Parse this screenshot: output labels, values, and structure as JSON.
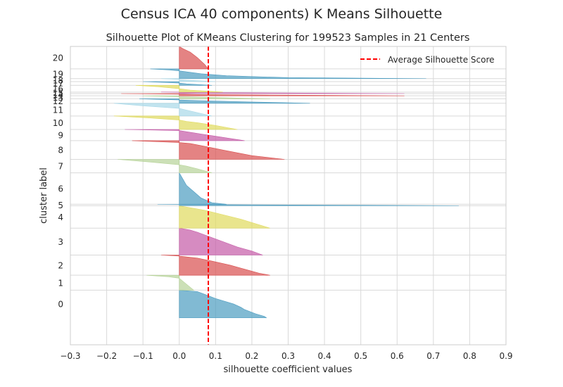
{
  "figure": {
    "suptitle": "Census ICA 40 components) K Means Silhouette"
  },
  "chart_data": {
    "type": "area",
    "title": "Silhouette Plot of KMeans Clustering for 199523 Samples in 21 Centers",
    "xlabel": "silhouette coefficient values",
    "ylabel": "cluster label",
    "xlim": [
      -0.3,
      0.9
    ],
    "xticks": [
      "−0.3",
      "−0.2",
      "−0.1",
      "0.0",
      "0.1",
      "0.2",
      "0.3",
      "0.4",
      "0.5",
      "0.6",
      "0.7",
      "0.8",
      "0.9"
    ],
    "xtick_values": [
      -0.3,
      -0.2,
      -0.1,
      0.0,
      0.1,
      0.2,
      0.3,
      0.4,
      0.5,
      0.6,
      0.7,
      0.8,
      0.9
    ],
    "ylim": [
      0,
      199523
    ],
    "grid": true,
    "legend": {
      "position": "top-right",
      "entries": [
        "Average Silhouette Score"
      ]
    },
    "average_silhouette_score": 0.08,
    "average_line_color": "#ff0000",
    "colors": [
      "#4c9cc0",
      "#b6d398",
      "#d94e4e",
      "#c45aa7",
      "#e0da5c"
    ],
    "clusters": [
      {
        "label": "0",
        "y0": 18000,
        "y1": 36500,
        "color": "#4c9cc0",
        "profile": [
          [
            0,
            0.24
          ],
          [
            0.05,
            0.235
          ],
          [
            0.15,
            0.21
          ],
          [
            0.3,
            0.18
          ],
          [
            0.38,
            0.17
          ],
          [
            0.5,
            0.15
          ],
          [
            0.7,
            0.1
          ],
          [
            0.85,
            0.07
          ],
          [
            0.95,
            0.05
          ],
          [
            1,
            0.0
          ]
        ]
      },
      {
        "label": "1",
        "y0": 36500,
        "y1": 46500,
        "color": "#b6d398",
        "profile": [
          [
            0,
            0.04
          ],
          [
            0.2,
            0.03
          ],
          [
            0.4,
            0.02
          ],
          [
            0.6,
            0.01
          ],
          [
            0.8,
            0.0
          ],
          [
            0.9,
            -0.03
          ],
          [
            1,
            -0.09
          ]
        ]
      },
      {
        "label": "2",
        "y0": 46500,
        "y1": 60000,
        "color": "#d94e4e",
        "profile": [
          [
            0,
            0.25
          ],
          [
            0.1,
            0.22
          ],
          [
            0.3,
            0.18
          ],
          [
            0.5,
            0.14
          ],
          [
            0.7,
            0.09
          ],
          [
            0.85,
            0.05
          ],
          [
            0.95,
            0.0
          ],
          [
            1,
            -0.05
          ]
        ]
      },
      {
        "label": "3",
        "y0": 60000,
        "y1": 78000,
        "color": "#c45aa7",
        "profile": [
          [
            0,
            0.23
          ],
          [
            0.15,
            0.2
          ],
          [
            0.3,
            0.16
          ],
          [
            0.5,
            0.12
          ],
          [
            0.7,
            0.08
          ],
          [
            0.85,
            0.05
          ],
          [
            0.93,
            0.03
          ],
          [
            1,
            0.0
          ]
        ]
      },
      {
        "label": "4",
        "y0": 78000,
        "y1": 93000,
        "color": "#e0da5c",
        "profile": [
          [
            0,
            0.25
          ],
          [
            0.2,
            0.21
          ],
          [
            0.4,
            0.17
          ],
          [
            0.6,
            0.12
          ],
          [
            0.8,
            0.07
          ],
          [
            1,
            0.0
          ]
        ]
      },
      {
        "label": "5",
        "y0": 93000,
        "y1": 94000,
        "color": "#4c9cc0",
        "profile": [
          [
            0,
            0.77
          ],
          [
            0.3,
            0.5
          ],
          [
            0.6,
            0.2
          ],
          [
            1,
            -0.06
          ]
        ]
      },
      {
        "label": "6",
        "y0": 94000,
        "y1": 115000,
        "color": "#4c9cc0",
        "profile": [
          [
            0,
            0.13
          ],
          [
            0.05,
            0.09
          ],
          [
            0.2,
            0.06
          ],
          [
            0.4,
            0.04
          ],
          [
            0.6,
            0.02
          ],
          [
            0.8,
            0.01
          ],
          [
            1,
            0.0
          ]
        ]
      },
      {
        "label": "7",
        "y0": 115000,
        "y1": 124000,
        "color": "#b6d398",
        "profile": [
          [
            0,
            0.09
          ],
          [
            0.3,
            0.05
          ],
          [
            0.5,
            0.02
          ],
          [
            0.6,
            0.0
          ],
          [
            0.8,
            -0.08
          ],
          [
            1,
            -0.17
          ]
        ]
      },
      {
        "label": "8",
        "y0": 124000,
        "y1": 136500,
        "color": "#d94e4e",
        "profile": [
          [
            0,
            0.29
          ],
          [
            0.2,
            0.2
          ],
          [
            0.5,
            0.12
          ],
          [
            0.7,
            0.07
          ],
          [
            0.85,
            0.03
          ],
          [
            0.9,
            0.0
          ],
          [
            1,
            -0.13
          ]
        ]
      },
      {
        "label": "9",
        "y0": 136500,
        "y1": 144000,
        "color": "#c45aa7",
        "profile": [
          [
            0,
            0.18
          ],
          [
            0.3,
            0.12
          ],
          [
            0.6,
            0.06
          ],
          [
            0.8,
            0.02
          ],
          [
            0.9,
            0.0
          ],
          [
            1,
            -0.15
          ]
        ]
      },
      {
        "label": "10",
        "y0": 144000,
        "y1": 153000,
        "color": "#e0da5c",
        "profile": [
          [
            0,
            0.16
          ],
          [
            0.3,
            0.1
          ],
          [
            0.5,
            0.05
          ],
          [
            0.6,
            0.02
          ],
          [
            0.7,
            0.0
          ],
          [
            0.85,
            -0.08
          ],
          [
            1,
            -0.18
          ]
        ]
      },
      {
        "label": "11",
        "y0": 153000,
        "y1": 161500,
        "color": "#a8d8e8",
        "profile": [
          [
            0,
            0.09
          ],
          [
            0.4,
            0.03
          ],
          [
            0.6,
            0.0
          ],
          [
            0.8,
            -0.1
          ],
          [
            1,
            -0.18
          ]
        ]
      },
      {
        "label": "12",
        "y0": 161500,
        "y1": 164500,
        "color": "#4c9cc0",
        "profile": [
          [
            0,
            0.36
          ],
          [
            0.3,
            0.2
          ],
          [
            0.6,
            0.05
          ],
          [
            0.75,
            0.0
          ],
          [
            1,
            -0.11
          ]
        ]
      },
      {
        "label": "13",
        "y0": 164500,
        "y1": 166500,
        "color": "#b6d398",
        "profile": [
          [
            0,
            0.25
          ],
          [
            0.5,
            0.08
          ],
          [
            0.7,
            0.0
          ],
          [
            1,
            -0.1
          ]
        ]
      },
      {
        "label": "14",
        "y0": 166500,
        "y1": 168000,
        "color": "#d94e4e",
        "profile": [
          [
            0,
            0.62
          ],
          [
            0.3,
            0.3
          ],
          [
            0.6,
            0.05
          ],
          [
            0.75,
            0.0
          ],
          [
            1,
            -0.16
          ]
        ]
      },
      {
        "label": "15",
        "y0": 168000,
        "y1": 169000,
        "color": "#c45aa7",
        "profile": [
          [
            0,
            0.62
          ],
          [
            0.4,
            0.3
          ],
          [
            0.7,
            0.05
          ],
          [
            1,
            -0.05
          ]
        ]
      },
      {
        "label": "16",
        "y0": 169000,
        "y1": 173500,
        "color": "#e0da5c",
        "profile": [
          [
            0,
            0.12
          ],
          [
            0.3,
            0.03
          ],
          [
            0.5,
            0.0
          ],
          [
            0.8,
            -0.06
          ],
          [
            1,
            -0.12
          ]
        ]
      },
      {
        "label": "17",
        "y0": 173500,
        "y1": 176000,
        "color": "#4c9cc0",
        "profile": [
          [
            0,
            0.09
          ],
          [
            0.4,
            0.02
          ],
          [
            0.6,
            0.0
          ],
          [
            1,
            -0.1
          ]
        ]
      },
      {
        "label": "18",
        "y0": 176000,
        "y1": 178000,
        "color": "#a8d8e8",
        "profile": [
          [
            0,
            0.1
          ],
          [
            0.5,
            0.02
          ],
          [
            0.7,
            0.0
          ],
          [
            1,
            -0.05
          ]
        ]
      },
      {
        "label": "19",
        "y0": 178000,
        "y1": 184500,
        "color": "#4c9cc0",
        "profile": [
          [
            0,
            0.68
          ],
          [
            0.1,
            0.3
          ],
          [
            0.3,
            0.13
          ],
          [
            0.5,
            0.06
          ],
          [
            0.8,
            0.0
          ],
          [
            0.9,
            -0.03
          ],
          [
            1,
            -0.08
          ]
        ]
      },
      {
        "label": "20",
        "y0": 184500,
        "y1": 199523,
        "color": "#d94e4e",
        "profile": [
          [
            0,
            0.08
          ],
          [
            0.2,
            0.07
          ],
          [
            0.5,
            0.05
          ],
          [
            0.75,
            0.03
          ],
          [
            0.9,
            0.01
          ],
          [
            1,
            0.0
          ]
        ]
      }
    ]
  }
}
